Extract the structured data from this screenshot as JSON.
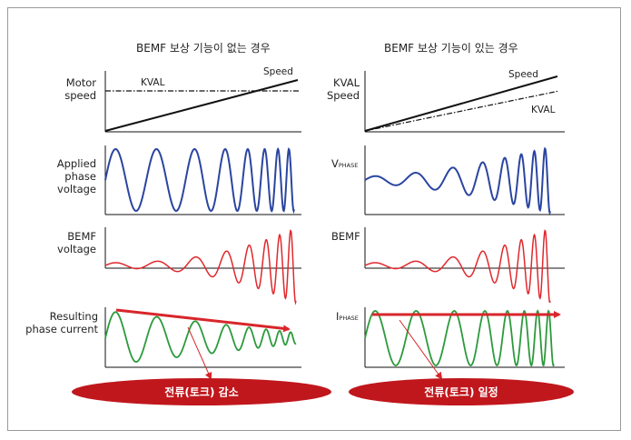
{
  "left": {
    "title": "BEMF 보상 기능이 없는 경우",
    "row_labels": {
      "speed": "Motor\nspeed",
      "applied": "Applied\nphase\nvoltage",
      "bemf": "BEMF\nvoltage",
      "current": "Resulting\nphase current"
    },
    "kval_label": "KVAL",
    "speed_label": "Speed",
    "result_label": "전류(토크) 감소"
  },
  "right": {
    "title": "BEMF 보상 기능이 있는 경우",
    "row_labels": {
      "speed": "KVAL\nSpeed",
      "applied_main": "V",
      "applied_sub": "PHASE",
      "bemf": "BEMF",
      "current_main": "I",
      "current_sub": "PHASE"
    },
    "kval_label": "KVAL",
    "speed_label": "Speed",
    "result_label": "전류(토크) 일정"
  },
  "colors": {
    "axis": "#111111",
    "applied_wave": "#2b45a0",
    "bemf_wave": "#e0282d",
    "current_wave": "#2c9a3c",
    "arrow": "#d8262b",
    "ellipse": "#c0171d"
  }
}
